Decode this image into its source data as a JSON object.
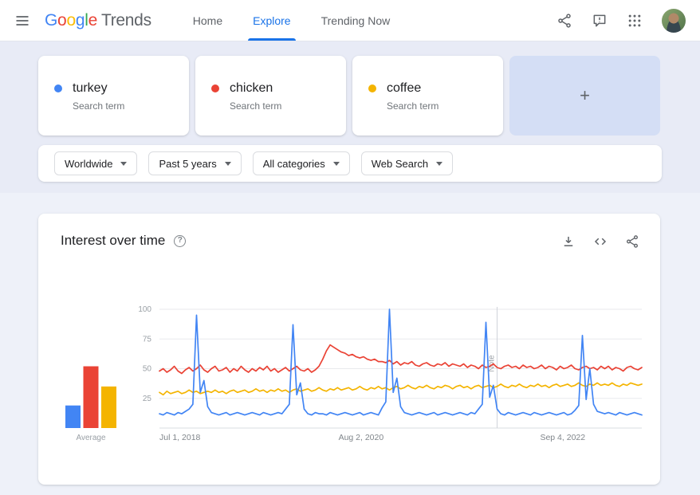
{
  "header": {
    "logo": {
      "letters": [
        {
          "ch": "G",
          "color": "#4285F4"
        },
        {
          "ch": "o",
          "color": "#EA4335"
        },
        {
          "ch": "o",
          "color": "#FBBC05"
        },
        {
          "ch": "g",
          "color": "#4285F4"
        },
        {
          "ch": "l",
          "color": "#34A853"
        },
        {
          "ch": "e",
          "color": "#EA4335"
        }
      ],
      "suffix": "Trends"
    },
    "nav": [
      {
        "label": "Home",
        "active": false
      },
      {
        "label": "Explore",
        "active": true
      },
      {
        "label": "Trending Now",
        "active": false
      }
    ]
  },
  "icons": {
    "menu": "hamburger",
    "share": "share-nodes",
    "feedback": "speech-bubble-exclamation",
    "apps": "grid-3x3",
    "help": "?",
    "download": "arrow-down-tray",
    "embed": "code-angle-brackets",
    "plus": "+"
  },
  "terms": [
    {
      "label": "turkey",
      "sublabel": "Search term",
      "color": "#4285f4"
    },
    {
      "label": "chicken",
      "sublabel": "Search term",
      "color": "#ea4335"
    },
    {
      "label": "coffee",
      "sublabel": "Search term",
      "color": "#f4b400"
    }
  ],
  "filters": [
    {
      "label": "Worldwide"
    },
    {
      "label": "Past 5 years"
    },
    {
      "label": "All categories"
    },
    {
      "label": "Web Search"
    }
  ],
  "chart_card": {
    "title": "Interest over time"
  },
  "chart_data": {
    "type": "line",
    "title": "Interest over time",
    "ylim": [
      0,
      100
    ],
    "yticks": [
      25,
      50,
      75,
      100
    ],
    "grid": true,
    "legend_position": "none",
    "xticks": [
      {
        "label": "Jul 1, 2018",
        "pos": 0.0
      },
      {
        "label": "Aug 2, 2020",
        "pos": 0.418
      },
      {
        "label": "Sep 4, 2022",
        "pos": 0.836
      }
    ],
    "note": {
      "label": "Note",
      "pos": 0.7
    },
    "averages": {
      "label": "Average",
      "values": [
        {
          "name": "turkey",
          "value": 19,
          "color": "#4285f4"
        },
        {
          "name": "chicken",
          "value": 52,
          "color": "#ea4335"
        },
        {
          "name": "coffee",
          "value": 35,
          "color": "#f4b400"
        }
      ]
    },
    "series": [
      {
        "name": "turkey",
        "color": "#4285f4",
        "values": [
          12,
          11,
          13,
          12,
          11,
          13,
          12,
          14,
          16,
          20,
          95,
          30,
          40,
          18,
          13,
          12,
          11,
          12,
          13,
          11,
          12,
          13,
          12,
          11,
          12,
          13,
          12,
          11,
          13,
          12,
          11,
          12,
          13,
          12,
          16,
          20,
          87,
          28,
          38,
          16,
          12,
          11,
          13,
          12,
          12,
          11,
          13,
          12,
          11,
          12,
          13,
          12,
          11,
          12,
          13,
          11,
          12,
          13,
          12,
          11,
          17,
          22,
          100,
          30,
          42,
          18,
          13,
          12,
          11,
          12,
          13,
          12,
          11,
          12,
          13,
          11,
          12,
          13,
          12,
          11,
          12,
          13,
          12,
          11,
          13,
          12,
          16,
          20,
          89,
          26,
          36,
          16,
          12,
          11,
          13,
          12,
          11,
          12,
          13,
          12,
          11,
          13,
          12,
          11,
          12,
          13,
          12,
          11,
          12,
          13,
          11,
          12,
          15,
          19,
          78,
          24,
          50,
          20,
          14,
          13,
          12,
          13,
          12,
          11,
          13,
          12,
          11,
          12,
          13,
          12,
          11
        ]
      },
      {
        "name": "chicken",
        "color": "#ea4335",
        "values": [
          48,
          50,
          47,
          49,
          52,
          48,
          46,
          49,
          51,
          48,
          50,
          53,
          49,
          47,
          50,
          52,
          48,
          49,
          51,
          47,
          50,
          48,
          52,
          49,
          47,
          50,
          48,
          51,
          49,
          52,
          48,
          50,
          47,
          49,
          51,
          48,
          50,
          52,
          49,
          48,
          50,
          47,
          49,
          52,
          58,
          65,
          70,
          68,
          66,
          64,
          63,
          61,
          62,
          60,
          59,
          60,
          58,
          57,
          58,
          56,
          56,
          55,
          57,
          54,
          56,
          53,
          55,
          54,
          56,
          53,
          52,
          54,
          55,
          53,
          52,
          54,
          53,
          55,
          52,
          54,
          53,
          52,
          54,
          51,
          53,
          52,
          50,
          53,
          51,
          52,
          54,
          51,
          50,
          52,
          53,
          51,
          52,
          50,
          53,
          51,
          52,
          50,
          51,
          53,
          50,
          52,
          51,
          49,
          52,
          50,
          51,
          53,
          50,
          49,
          51,
          52,
          50,
          51,
          49,
          52,
          50,
          52,
          49,
          51,
          50,
          48,
          51,
          52,
          50,
          49,
          51
        ]
      },
      {
        "name": "coffee",
        "color": "#f4b400",
        "values": [
          30,
          28,
          31,
          29,
          30,
          31,
          29,
          30,
          32,
          30,
          31,
          29,
          30,
          31,
          30,
          32,
          30,
          31,
          29,
          31,
          32,
          30,
          31,
          32,
          30,
          31,
          33,
          31,
          32,
          30,
          32,
          31,
          33,
          31,
          32,
          30,
          32,
          33,
          31,
          32,
          33,
          31,
          32,
          34,
          32,
          31,
          33,
          32,
          34,
          32,
          33,
          34,
          32,
          33,
          35,
          33,
          32,
          34,
          33,
          35,
          33,
          34,
          32,
          34,
          35,
          33,
          34,
          36,
          34,
          33,
          35,
          34,
          36,
          34,
          33,
          35,
          34,
          36,
          35,
          33,
          35,
          36,
          34,
          35,
          33,
          35,
          36,
          34,
          35,
          36,
          34,
          35,
          37,
          35,
          34,
          36,
          35,
          37,
          35,
          34,
          36,
          35,
          37,
          35,
          36,
          34,
          36,
          37,
          35,
          36,
          37,
          35,
          36,
          38,
          36,
          35,
          37,
          36,
          38,
          36,
          37,
          36,
          38,
          36,
          35,
          37,
          36,
          38,
          37,
          36,
          37
        ]
      }
    ]
  }
}
